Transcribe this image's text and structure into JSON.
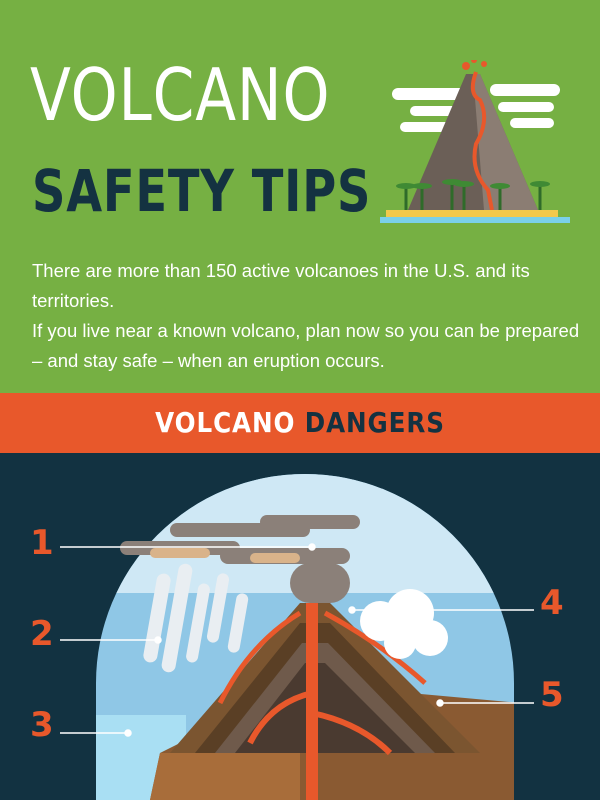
{
  "header": {
    "title_line1": "VOLCANO",
    "title_line2": "SAFETY TIPS",
    "intro_line1": "There are more than 150 active volcanoes in the U.S. and its territories.",
    "intro_line2": "If you live near a known volcano, plan now so you can be prepared – and stay safe – when an eruption occurs."
  },
  "section": {
    "word1": "VOLCANO",
    "word2": "DANGERS"
  },
  "callouts": [
    "1",
    "2",
    "3",
    "4",
    "5"
  ],
  "colors": {
    "green": "#76b043",
    "orange": "#e8582b",
    "navy": "#123241"
  },
  "icons": [
    "volcano-illustration-icon",
    "volcano-cross-section-icon"
  ]
}
